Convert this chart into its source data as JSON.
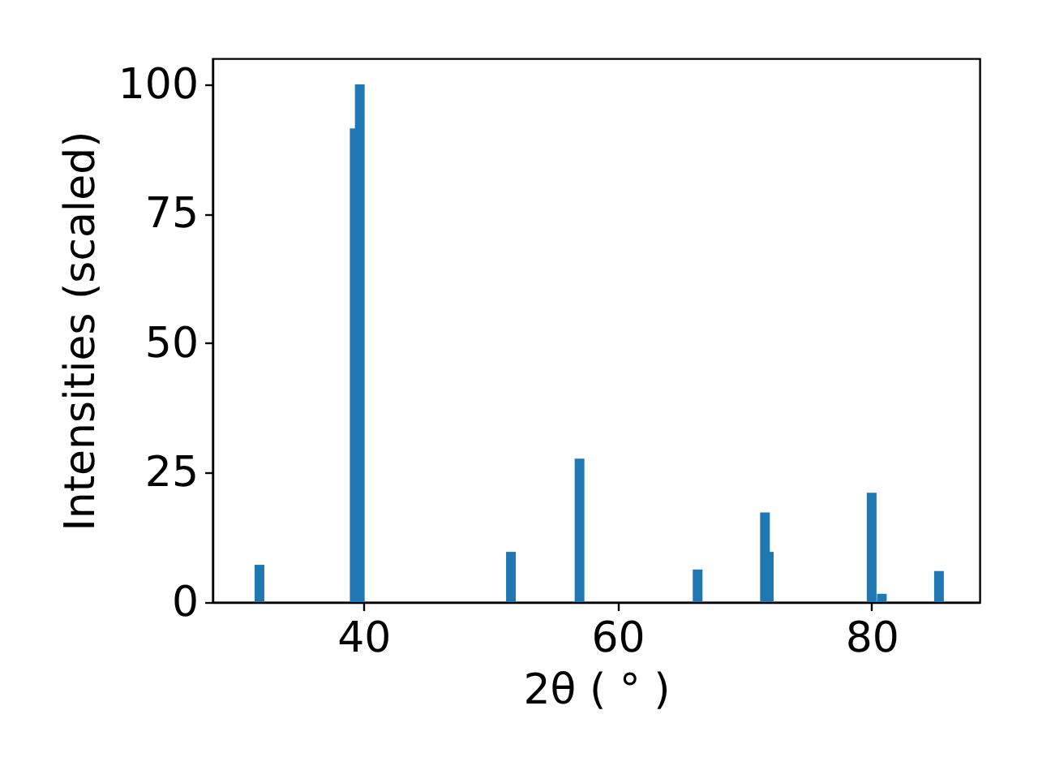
{
  "chart_data": {
    "type": "bar",
    "xlabel": "2θ ( ° )",
    "ylabel": "Intensities (scaled)",
    "x": [
      31.8,
      39.3,
      39.7,
      51.6,
      57.0,
      66.3,
      71.6,
      71.9,
      80.0,
      80.8,
      85.3
    ],
    "series": [
      {
        "color": "#1f77b4",
        "values": [
          7.2,
          91.5,
          100,
          9.7,
          27.7,
          6.3,
          17.3,
          9.7,
          21.1,
          1.6,
          6.0
        ]
      }
    ],
    "xlim": [
      28.1,
      88.5
    ],
    "ylim": [
      0,
      105
    ],
    "xticks": [
      40,
      60,
      80
    ],
    "yticks": [
      0,
      25,
      50,
      75,
      100
    ],
    "grid": false
  }
}
